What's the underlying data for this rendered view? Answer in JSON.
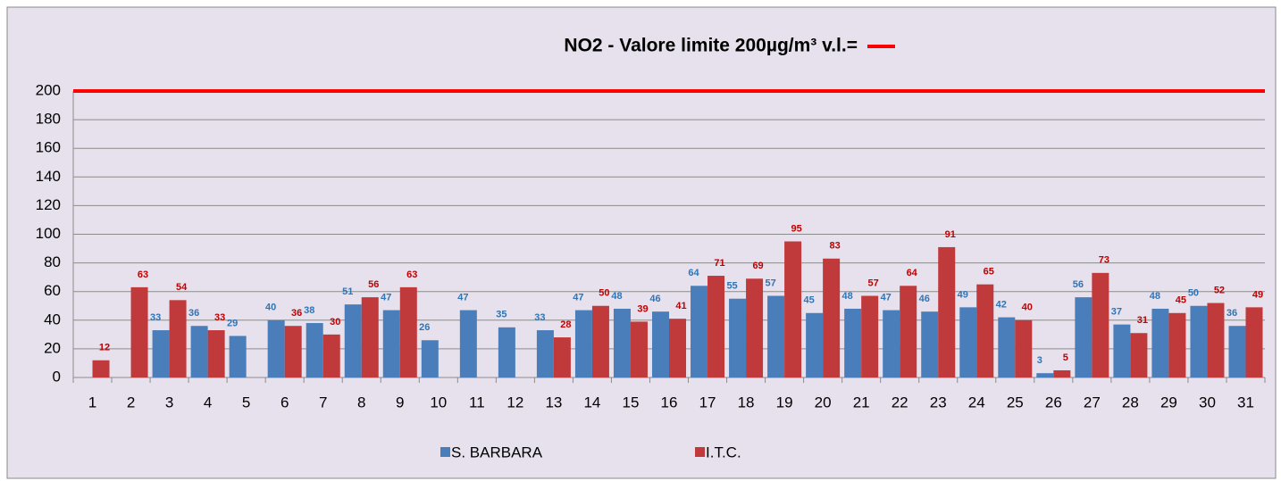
{
  "chart_data": {
    "type": "bar",
    "title": "NO2 - Valore limite 200µg/m³  v.l.=",
    "categories": [
      "1",
      "2",
      "3",
      "4",
      "5",
      "6",
      "7",
      "8",
      "9",
      "10",
      "11",
      "12",
      "13",
      "14",
      "15",
      "16",
      "17",
      "18",
      "19",
      "20",
      "21",
      "22",
      "23",
      "24",
      "25",
      "26",
      "27",
      "28",
      "29",
      "30",
      "31"
    ],
    "series": [
      {
        "name": "S. BARBARA",
        "color": "#4a7ebb",
        "label_color": "#2e75b6",
        "values": [
          null,
          null,
          33,
          36,
          29,
          40,
          38,
          51,
          47,
          26,
          47,
          35,
          33,
          47,
          48,
          46,
          64,
          55,
          57,
          45,
          48,
          47,
          46,
          49,
          42,
          3,
          56,
          37,
          48,
          50,
          36
        ]
      },
      {
        "name": "I.T.C.",
        "color": "#c0393b",
        "label_color": "#c00000",
        "values": [
          12,
          63,
          54,
          33,
          null,
          36,
          30,
          56,
          63,
          null,
          null,
          null,
          28,
          50,
          39,
          41,
          71,
          69,
          95,
          83,
          57,
          64,
          91,
          65,
          40,
          5,
          73,
          31,
          45,
          52,
          49
        ]
      }
    ],
    "limit_line": {
      "value": 200,
      "color": "#ff0000"
    },
    "ylim": [
      0,
      200
    ],
    "yticks": [
      0,
      20,
      40,
      60,
      80,
      100,
      120,
      140,
      160,
      180,
      200
    ],
    "grid": true,
    "legend": "bottom"
  }
}
